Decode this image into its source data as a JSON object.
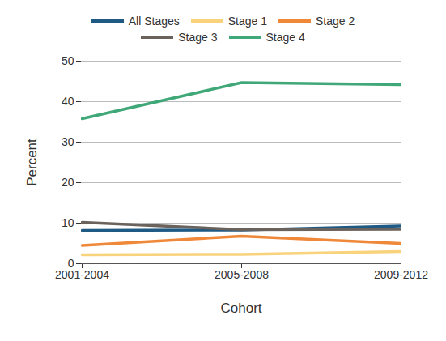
{
  "chart_data": {
    "type": "line",
    "x_label": "Cohort",
    "y_label": "Percent",
    "categories": [
      "2001-2004",
      "2005-2008",
      "2009-2012"
    ],
    "series": [
      {
        "name": "All Stages",
        "color": "#1f5a85",
        "values": [
          8.2,
          8.3,
          9.3
        ]
      },
      {
        "name": "Stage 1",
        "color": "#f9d27c",
        "values": [
          2.2,
          2.3,
          3.0
        ]
      },
      {
        "name": "Stage 2",
        "color": "#f0883a",
        "values": [
          4.5,
          6.8,
          5.0
        ]
      },
      {
        "name": "Stage 3",
        "color": "#6a625c",
        "values": [
          10.2,
          8.4,
          8.5
        ]
      },
      {
        "name": "Stage 4",
        "color": "#40a878",
        "values": [
          35.8,
          44.7,
          44.2
        ]
      }
    ],
    "ylim": [
      0,
      50
    ],
    "yticks": [
      0,
      10,
      20,
      30,
      40,
      50
    ],
    "grid": true,
    "legend": "top"
  }
}
